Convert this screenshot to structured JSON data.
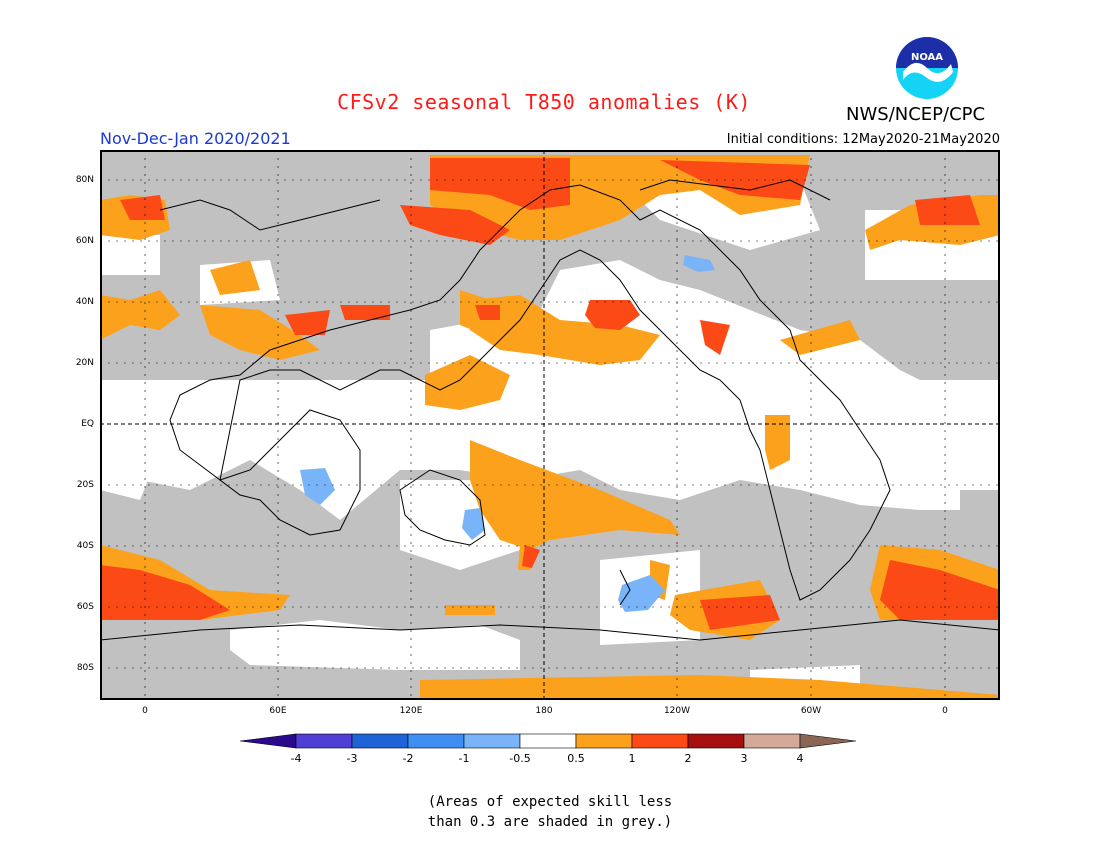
{
  "header": {
    "title": "CFSv2 seasonal T850 anomalies (K)",
    "agency": "NWS/NCEP/CPC",
    "logo_text": "NOAA",
    "season": "Nov-Dec-Jan 2020/2021",
    "initial_conditions": "Initial conditions: 12May2020-21May2020"
  },
  "axes": {
    "lat_labels": [
      "80N",
      "60N",
      "40N",
      "20N",
      "EQ",
      "20S",
      "40S",
      "60S",
      "80S"
    ],
    "lon_labels": [
      "0",
      "60E",
      "120E",
      "180",
      "120W",
      "60W",
      "0"
    ]
  },
  "colorbar": {
    "labels": [
      "-4",
      "-3",
      "-2",
      "-1",
      "-0.5",
      "0.5",
      "1",
      "2",
      "3",
      "4"
    ],
    "colors": [
      "#2a0a8c",
      "#4f3fd4",
      "#1f63d6",
      "#3f8ff2",
      "#78b4f7",
      "#ffffff",
      "#fca11c",
      "#fc4a16",
      "#a50f0f",
      "#d4a99a",
      "#8a6454"
    ]
  },
  "map_colors": {
    "grey": "#c1c1c1",
    "orange": "#fca11c",
    "red": "#fc4a16",
    "lightblue": "#78b4f7"
  },
  "note": {
    "line1": "(Areas of expected skill less",
    "line2": "than 0.3 are shaded in grey.)"
  }
}
